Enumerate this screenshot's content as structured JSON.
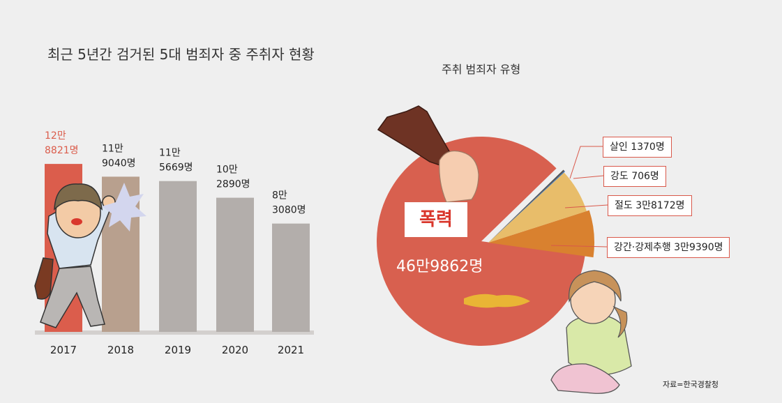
{
  "left": {
    "title": "최근 5년간 검거된 5대 범죄자 중 주취자 현황"
  },
  "right": {
    "title": "주취 범죄자 유형"
  },
  "source": "자료=한국경찰청",
  "colors": {
    "background": "#efefef",
    "bar_highlight": "#db5d4c",
    "bar_2018": "#b8a08e",
    "bar_gray": "#b3aeab",
    "pie_violence": "#d8604f",
    "pie_sexual": "#d9812f",
    "pie_theft": "#e8bd6a",
    "pie_robbery": "#3a77c2",
    "pie_murder": "#555555"
  },
  "chart_data": [
    {
      "type": "bar",
      "title": "최근 5년간 검거된 5대 범죄자 중 주취자 현황",
      "categories": [
        "2017",
        "2018",
        "2019",
        "2020",
        "2021"
      ],
      "values": [
        128821,
        119040,
        115669,
        102890,
        83080
      ],
      "labels": [
        [
          "12만",
          "8821명"
        ],
        [
          "11만",
          "9040명"
        ],
        [
          "11만",
          "5669명"
        ],
        [
          "10만",
          "2890명"
        ],
        [
          "8만",
          "3080명"
        ]
      ],
      "ylim": [
        0,
        140000
      ],
      "grid": false
    },
    {
      "type": "pie",
      "title": "주취 범죄자 유형",
      "slices": [
        {
          "name": "폭력",
          "value": 469862,
          "label": "46만9862명",
          "color": "#d8604f"
        },
        {
          "name": "강간·강제추행",
          "value": 39390,
          "label": "강간·강제추행  3만9390명",
          "color": "#d9812f"
        },
        {
          "name": "절도",
          "value": 38172,
          "label": "절도 3만8172명",
          "color": "#e8bd6a"
        },
        {
          "name": "강도",
          "value": 706,
          "label": "강도 706명",
          "color": "#3a77c2"
        },
        {
          "name": "살인",
          "value": 1370,
          "label": "살인 1370명",
          "color": "#555555"
        }
      ]
    }
  ]
}
